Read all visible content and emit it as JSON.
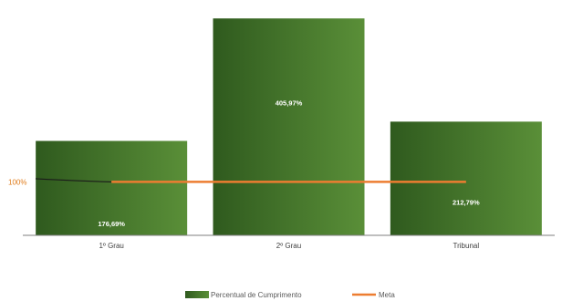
{
  "chart_data": {
    "type": "bar",
    "categories": [
      "1º Grau",
      "2º Grau",
      "Tribunal"
    ],
    "series": [
      {
        "name": "Percentual de Cumprimento",
        "type": "bar",
        "values": [
          176.69,
          405.97,
          212.79
        ],
        "display_labels": [
          "176,69%",
          "405,97%",
          "212,79%"
        ]
      },
      {
        "name": "Meta",
        "type": "line",
        "value": 100
      }
    ],
    "reference_label": "100%",
    "ylim": [
      0,
      420
    ],
    "grid": false,
    "legend_position": "bottom",
    "colors": {
      "bar_dark": "#2f5a1e",
      "bar_light": "#5a8f38",
      "meta_line": "#ed7d31",
      "axis": "#7f7f7f"
    }
  }
}
